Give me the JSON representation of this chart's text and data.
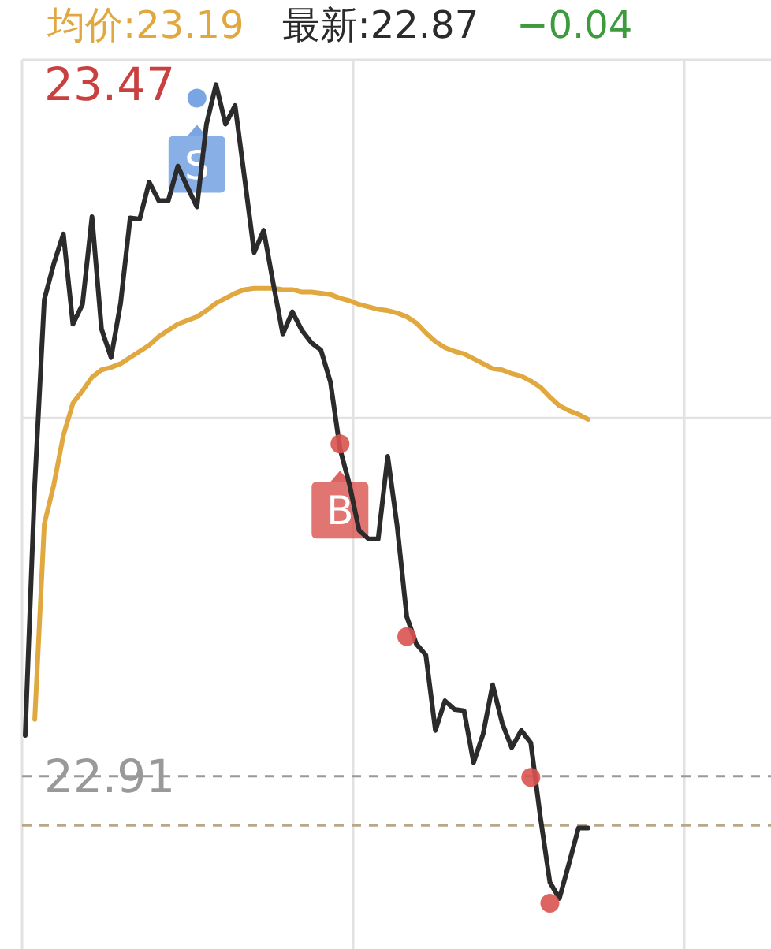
{
  "chart_data": {
    "type": "line",
    "categories": [
      null,
      null,
      null,
      null,
      null,
      null,
      null,
      null,
      null,
      null,
      null,
      null,
      null,
      null,
      null,
      null,
      null,
      null,
      null,
      null,
      null,
      null,
      null,
      null,
      null,
      null,
      null,
      null,
      null,
      null,
      null,
      null,
      null,
      null,
      null,
      null,
      null,
      null,
      null,
      null,
      null,
      null,
      null,
      null,
      null,
      null,
      null,
      null,
      null,
      null,
      null,
      null,
      null,
      null,
      null,
      null,
      null,
      null,
      null,
      null
    ],
    "ylim": [
      22.77,
      23.49
    ],
    "yticks": [
      {
        "value": 23.47,
        "label": "23.47"
      },
      {
        "value": 23.2,
        "label": null
      },
      {
        "value": 22.91,
        "label": "22.91"
      }
    ],
    "grid": true,
    "tick_labels": "y",
    "series": [
      {
        "name": "均价:23.19",
        "color": "#e0a83e",
        "values": [
          null,
          22.956,
          23.114,
          23.146,
          23.186,
          23.212,
          23.222,
          23.233,
          23.239,
          23.241,
          23.244,
          23.249,
          23.254,
          23.259,
          23.266,
          23.271,
          23.276,
          23.279,
          23.282,
          23.287,
          23.293,
          23.297,
          23.301,
          23.304,
          23.305,
          23.305,
          23.305,
          23.304,
          23.304,
          23.302,
          23.302,
          23.301,
          23.3,
          23.297,
          23.295,
          23.292,
          23.29,
          23.288,
          23.287,
          23.285,
          23.282,
          23.277,
          23.269,
          23.262,
          23.257,
          23.254,
          23.252,
          23.248,
          23.244,
          23.24,
          23.239,
          23.236,
          23.234,
          23.23,
          23.225,
          23.217,
          23.21,
          23.206,
          23.203,
          23.199
        ]
      },
      {
        "name": "最新:22.87",
        "color": "#2b2b2b",
        "values": [
          22.943,
          23.146,
          23.296,
          23.325,
          23.349,
          23.276,
          23.292,
          23.363,
          23.272,
          23.249,
          23.293,
          23.362,
          23.361,
          23.391,
          23.376,
          23.376,
          23.404,
          23.387,
          23.371,
          23.438,
          23.47,
          23.438,
          23.453,
          23.394,
          23.334,
          23.352,
          23.309,
          23.268,
          23.286,
          23.271,
          23.261,
          23.255,
          23.229,
          23.175,
          23.146,
          23.109,
          23.102,
          23.102,
          23.169,
          23.112,
          23.039,
          23.017,
          23.008,
          22.947,
          22.971,
          22.964,
          22.963,
          22.921,
          22.944,
          22.984,
          22.953,
          22.933,
          22.947,
          22.937,
          22.877,
          22.824,
          22.811,
          22.839,
          22.868,
          22.868
        ]
      },
      {
        "type": "scatter",
        "color": "#d9534f",
        "values": [
          null,
          null,
          null,
          null,
          null,
          null,
          null,
          null,
          null,
          null,
          null,
          null,
          null,
          null,
          null,
          null,
          null,
          null,
          null,
          null,
          null,
          null,
          null,
          null,
          null,
          null,
          null,
          null,
          null,
          null,
          null,
          null,
          null,
          23.179,
          null,
          null,
          null,
          null,
          null,
          null,
          23.023,
          null,
          null,
          null,
          null,
          null,
          null,
          null,
          null,
          null,
          null,
          null,
          null,
          22.909,
          null,
          22.807,
          null,
          null,
          null,
          null
        ]
      },
      {
        "type": "scatter",
        "color": "#6a9be0",
        "values": [
          null,
          null,
          null,
          null,
          null,
          null,
          null,
          null,
          null,
          null,
          null,
          null,
          null,
          null,
          null,
          null,
          null,
          null,
          23.459,
          null,
          null,
          null,
          null,
          null,
          null,
          null,
          null,
          null,
          null,
          null,
          null,
          null,
          null,
          null,
          null,
          null,
          null,
          null,
          null,
          null,
          null,
          null,
          null,
          null,
          null,
          null,
          null,
          null,
          null,
          null,
          null,
          null,
          null,
          null,
          null,
          null,
          null,
          null,
          null,
          null
        ]
      }
    ],
    "ref_lines": [
      {
        "axis": "y",
        "value": 22.91,
        "color": "#999999",
        "line_style": "dashed"
      },
      {
        "axis": "y",
        "value": 22.87,
        "color": "#b8a88a",
        "line_style": "dashed"
      }
    ],
    "annotations": [
      {
        "text": "S",
        "y": 23.459
      },
      {
        "text": "B",
        "y": 23.179
      },
      "−0.04"
    ]
  }
}
